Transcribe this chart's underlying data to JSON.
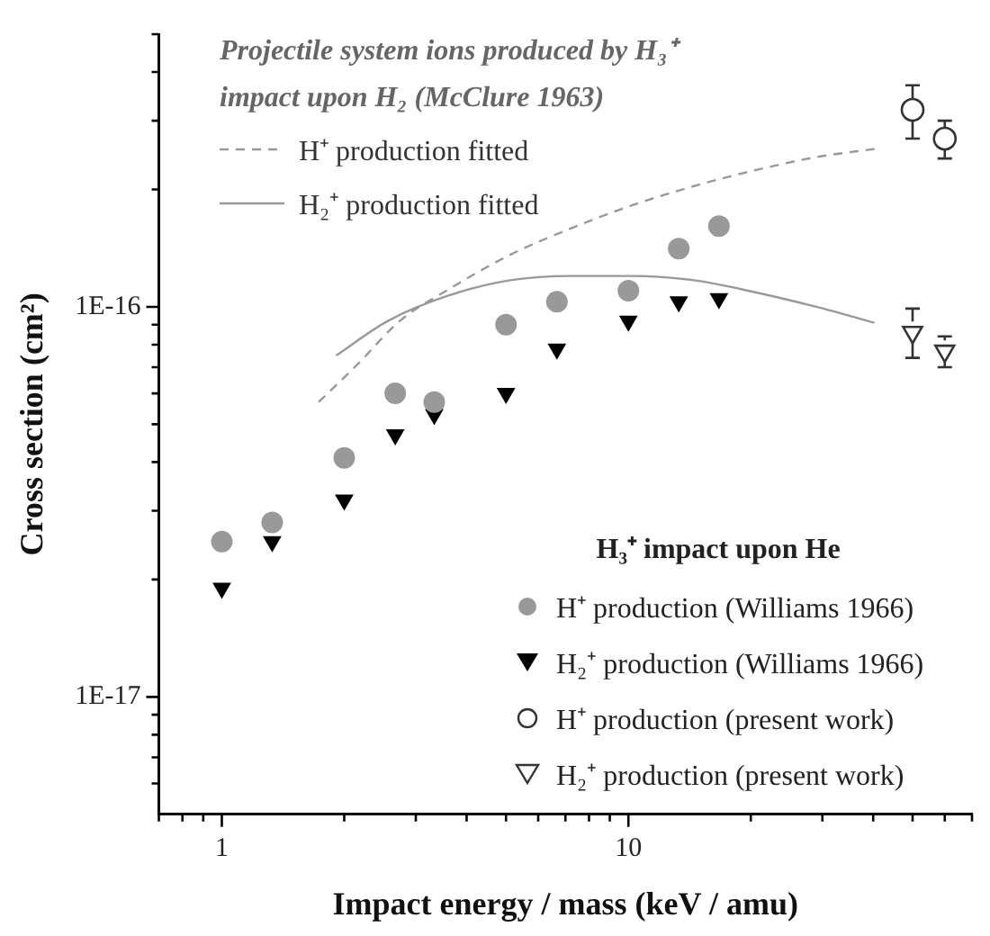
{
  "chart_data": {
    "type": "scatter",
    "xlabel": "Impact energy / mass (keV / amu)",
    "ylabel": "Cross section (cm²)",
    "legend_title": "H₃⁺ impact upon He",
    "legend": "bottom right",
    "log": "xy",
    "annotations": [
      "Projectile system ions produced by H₃⁺ impact upon H₂ (McClure 1963)"
    ],
    "xlim": [
      0.7,
      70
    ],
    "ylim": [
      5e-18,
      5e-16
    ],
    "xticks": [
      {
        "value": 0.7,
        "label": null
      },
      {
        "value": 0.8,
        "label": null
      },
      {
        "value": 0.9,
        "label": null
      },
      1,
      {
        "value": 2,
        "label": null
      },
      {
        "value": 3,
        "label": null
      },
      {
        "value": 4,
        "label": null
      },
      {
        "value": 5,
        "label": null
      },
      {
        "value": 6,
        "label": null
      },
      {
        "value": 7,
        "label": null
      },
      {
        "value": 8,
        "label": null
      },
      {
        "value": 9,
        "label": null
      },
      10,
      {
        "value": 20,
        "label": null
      },
      {
        "value": 30,
        "label": null
      },
      {
        "value": 40,
        "label": null
      },
      {
        "value": 50,
        "label": null
      },
      {
        "value": 60,
        "label": null
      },
      {
        "value": 70,
        "label": null
      }
    ],
    "yticks": [
      {
        "value": 6e-18,
        "label": null
      },
      {
        "value": 7e-18,
        "label": null
      },
      {
        "value": 8e-18,
        "label": null
      },
      {
        "value": 9e-18,
        "label": null
      },
      {
        "value": 1e-17,
        "label": "1E-17"
      },
      {
        "value": 2e-17,
        "label": null
      },
      {
        "value": 3e-17,
        "label": null
      },
      {
        "value": 4e-17,
        "label": null
      },
      {
        "value": 5e-17,
        "label": null
      },
      {
        "value": 6e-17,
        "label": null
      },
      {
        "value": 7e-17,
        "label": null
      },
      {
        "value": 8e-17,
        "label": null
      },
      {
        "value": 9e-17,
        "label": null
      },
      {
        "value": 1e-16,
        "label": "1E-16"
      },
      {
        "value": 2e-16,
        "label": null
      },
      {
        "value": 3e-16,
        "label": null
      },
      {
        "value": 4e-16,
        "label": null
      },
      {
        "value": 5e-16,
        "label": null
      }
    ],
    "series": [
      {
        "name": "H⁺ production fitted",
        "type": "line",
        "line_style": "dashed",
        "marker": "none",
        "color": "#999999",
        "x": [
          1.73,
          2.15,
          2.74,
          3.62,
          5.12,
          7.24,
          10.2,
          14.5,
          20.5,
          29,
          40.3
        ],
        "values": [
          5.7e-17,
          7.1e-17,
          9.2e-17,
          1.11e-16,
          1.36e-16,
          1.59e-16,
          1.82e-16,
          2.04e-16,
          2.24e-16,
          2.42e-16,
          2.54e-16
        ]
      },
      {
        "name": "H₂⁺ production fitted",
        "type": "line",
        "line_style": "solid",
        "marker": "none",
        "color": "#999999",
        "x": [
          1.91,
          2.56,
          3.62,
          5.12,
          7.24,
          10.2,
          14.5,
          20.5,
          29,
          40.3
        ],
        "values": [
          7.5e-17,
          9.2e-17,
          1.07e-16,
          1.17e-16,
          1.2e-16,
          1.2e-16,
          1.17e-16,
          1.09e-16,
          1e-16,
          9.1e-17
        ]
      },
      {
        "name": "H⁺ production (Williams 1966)",
        "type": "scatter",
        "marker": "circle",
        "color": "#999999",
        "x": [
          1,
          1.33,
          2,
          2.67,
          3.33,
          5,
          6.67,
          10,
          13.3,
          16.7
        ],
        "values": [
          2.5e-17,
          2.8e-17,
          4.1e-17,
          6e-17,
          5.7e-17,
          9e-17,
          1.03e-16,
          1.1e-16,
          1.41e-16,
          1.61e-16
        ]
      },
      {
        "name": "H₂⁺ production (Williams 1966)",
        "type": "scatter",
        "marker": "triangle",
        "color": "#000000",
        "x": [
          1,
          1.33,
          2,
          2.67,
          3.33,
          5,
          6.67,
          10,
          13.3,
          16.7
        ],
        "values": [
          1.9e-17,
          2.5e-17,
          3.2e-17,
          4.7e-17,
          5.3e-17,
          6e-17,
          7.8e-17,
          9.2e-17,
          1.03e-16,
          1.05e-16
        ]
      },
      {
        "name": "H⁺ production (present work)",
        "type": "scatter",
        "marker": "circle",
        "color": "#333333",
        "x": [
          50,
          60
        ],
        "values": [
          3.2e-16,
          2.7e-16
        ],
        "errors": [
          [
            2.7e-16,
            3.7e-16
          ],
          [
            2.4e-16,
            3e-16
          ]
        ]
      },
      {
        "name": "H₂⁺ production (present work)",
        "type": "scatter",
        "marker": "triangle",
        "color": "#333333",
        "x": [
          50,
          60
        ],
        "values": [
          8.6e-17,
          7.7e-17
        ],
        "errors": [
          [
            7.4e-17,
            9.9e-17
          ],
          [
            7e-17,
            8.4e-17
          ]
        ]
      }
    ]
  }
}
